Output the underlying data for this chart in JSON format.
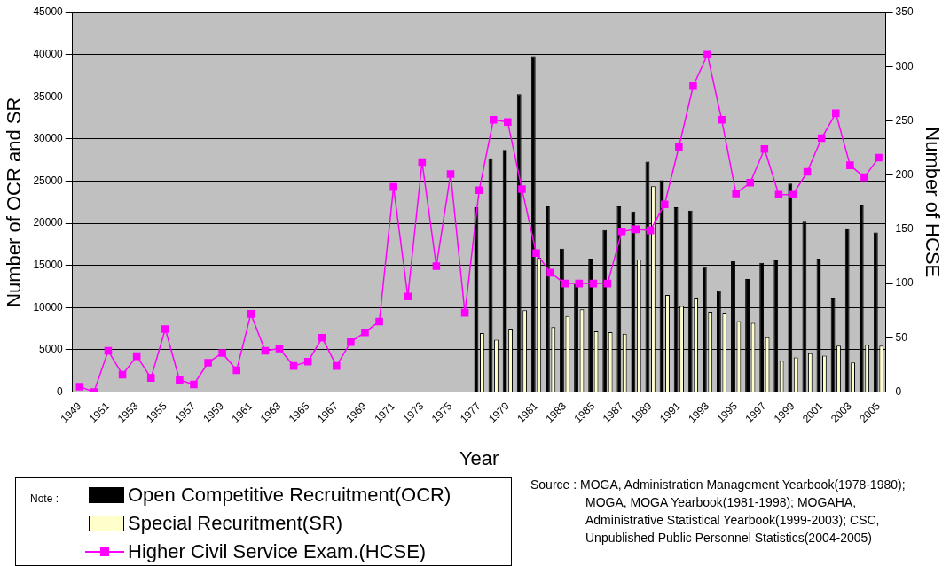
{
  "chart_data": {
    "type": "bar",
    "xlabel": "Year",
    "ylabel": "Number of OCR and SR",
    "y2label": "Number of HCSE",
    "legend_title": "Note :",
    "legend": "bottom left",
    "grid": "y",
    "marker": "square",
    "line_style": "solid",
    "categories": [
      "1949",
      null,
      "1951",
      null,
      "1953",
      null,
      "1955",
      null,
      "1957",
      null,
      "1959",
      null,
      "1961",
      null,
      "1963",
      null,
      "1965",
      null,
      "1967",
      null,
      "1969",
      null,
      "1971",
      null,
      "1973",
      null,
      "1975",
      null,
      "1977",
      null,
      "1979",
      null,
      "1981",
      null,
      "1983",
      null,
      "1985",
      null,
      "1987",
      null,
      "1989",
      null,
      "1991",
      null,
      "1993",
      null,
      "1995",
      null,
      "1997",
      null,
      "1999",
      null,
      "2001",
      null,
      "2003",
      null,
      "2005"
    ],
    "ylim": [
      0,
      45000
    ],
    "yticks": [
      0,
      5000,
      10000,
      15000,
      20000,
      25000,
      30000,
      35000,
      40000,
      45000
    ],
    "y2lim": [
      0,
      350
    ],
    "y2ticks": [
      0,
      50,
      100,
      150,
      200,
      250,
      300,
      350
    ],
    "series": [
      {
        "name": "Open Competitive Recruitment(OCR)",
        "color": "#000000",
        "values": [
          null,
          null,
          null,
          null,
          null,
          null,
          null,
          null,
          null,
          null,
          null,
          null,
          null,
          null,
          null,
          null,
          null,
          null,
          null,
          null,
          null,
          null,
          null,
          null,
          null,
          null,
          null,
          null,
          21900,
          27700,
          28700,
          35300,
          39800,
          22000,
          17000,
          12800,
          15800,
          19200,
          22000,
          21400,
          27300,
          25100,
          21900,
          21500,
          14800,
          12000,
          15500,
          13400,
          15300,
          15600,
          24700,
          20200,
          15800,
          11200,
          19400,
          22100,
          18900
        ]
      },
      {
        "name": "Special Recuritment(SR)",
        "color": "#ffffcc",
        "values": [
          null,
          null,
          null,
          null,
          null,
          null,
          null,
          null,
          null,
          null,
          null,
          null,
          null,
          null,
          null,
          null,
          null,
          null,
          null,
          null,
          null,
          null,
          null,
          null,
          null,
          null,
          null,
          null,
          7000,
          6200,
          7500,
          9700,
          15900,
          7700,
          9000,
          9800,
          7200,
          7100,
          6900,
          15700,
          24400,
          11500,
          10200,
          11200,
          9500,
          9400,
          8400,
          8200,
          6500,
          3700,
          4100,
          4600,
          4300,
          5500,
          3500,
          5600,
          5500
        ]
      },
      {
        "name": "Higher Civil Service Exam.(HCSE)",
        "type": "line",
        "axis": "y2",
        "color": "#ff00ff",
        "values": [
          5,
          0,
          38,
          16,
          33,
          13,
          58,
          11,
          7,
          27,
          36,
          20,
          72,
          38,
          40,
          24,
          28,
          50,
          24,
          46,
          55,
          65,
          189,
          88,
          212,
          116,
          201,
          73,
          186,
          251,
          249,
          187,
          128,
          110,
          100,
          100,
          100,
          100,
          148,
          150,
          149,
          173,
          226,
          282,
          311,
          251,
          183,
          193,
          224,
          182,
          182,
          203,
          234,
          257,
          209,
          198,
          216
        ]
      }
    ],
    "annotations": [
      "Source : MOGA, Administration Management Yearbook(1978-1980); MOGA, MOGA Yearbook(1981-1998); MOGAHA, Administrative Statistical Yearbook(1999-2003); CSC, Unpublished Public Personnel Statistics(2004-2005)"
    ]
  }
}
